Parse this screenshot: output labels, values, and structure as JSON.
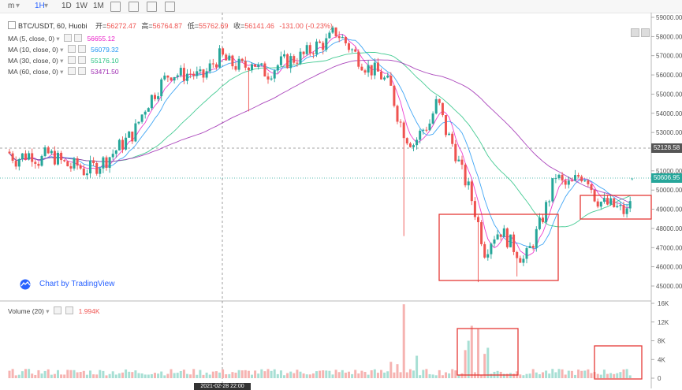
{
  "toolbar": {
    "items": [
      "m",
      "1H",
      "1D",
      "1W",
      "1M"
    ],
    "active": "1H"
  },
  "header": {
    "symbol": "BTC/USDT, 60, Huobi",
    "open_label": "开=",
    "open": "56272.47",
    "high_label": "高=",
    "high": "56764.87",
    "low_label": "低=",
    "low": "55762.69",
    "close_label": "收=",
    "close": "56141.46",
    "change": "-131.00 (-0.23%)"
  },
  "indicators": [
    {
      "label": "MA (5, close, 0)",
      "value": "56655.12",
      "color": "#e91ec8"
    },
    {
      "label": "MA (10, close, 0)",
      "value": "56079.32",
      "color": "#2196f3"
    },
    {
      "label": "MA (30, close, 0)",
      "value": "55176.10",
      "color": "#26c281"
    },
    {
      "label": "MA (60, close, 0)",
      "value": "53471.50",
      "color": "#9c27b0"
    }
  ],
  "volume_indicator": {
    "label": "Volume (20)",
    "value": "1.994K"
  },
  "branding": "Chart by TradingView",
  "crosshair_time": "2021-02-28  22:00",
  "price_tags": {
    "crosshair": "52128.58",
    "last": "50606.95"
  },
  "colors": {
    "up": "#26a69a",
    "down": "#ef5350",
    "up_vol": "#a7dfd4",
    "down_vol": "#f6b3b1",
    "box": "#e53935"
  },
  "chart_data": {
    "type": "candlestick",
    "price_axis": {
      "min": 45000,
      "max": 59000,
      "ticks": [
        "59000.00",
        "58000.00",
        "57000.00",
        "56000.00",
        "55000.00",
        "54000.00",
        "53000.00",
        "51000.00",
        "50000.00",
        "49000.00",
        "48000.00",
        "47000.00",
        "46000.00",
        "45000.00"
      ]
    },
    "volume_axis": {
      "min": 0,
      "max": 16000,
      "ticks": [
        "16K",
        "12K",
        "8K",
        "4K",
        "0"
      ]
    },
    "keypoints": [
      [
        0,
        52000
      ],
      [
        10,
        51600
      ],
      [
        20,
        51800
      ],
      [
        30,
        51900
      ],
      [
        40,
        51500
      ],
      [
        50,
        51900
      ],
      [
        60,
        51700
      ],
      [
        70,
        51400
      ],
      [
        80,
        51200
      ],
      [
        90,
        51300
      ],
      [
        95,
        51000
      ],
      [
        110,
        51200
      ],
      [
        125,
        51600
      ],
      [
        140,
        52200
      ],
      [
        160,
        53000
      ],
      [
        175,
        54400
      ],
      [
        190,
        55300
      ],
      [
        205,
        56100
      ],
      [
        220,
        56000
      ],
      [
        232,
        56100
      ],
      [
        246,
        55800
      ],
      [
        262,
        56700
      ],
      [
        270,
        57000
      ],
      [
        280,
        56600
      ],
      [
        290,
        56500
      ],
      [
        300,
        56400
      ],
      [
        310,
        56800
      ],
      [
        318,
        56300
      ],
      [
        330,
        56100
      ],
      [
        345,
        56600
      ],
      [
        360,
        56800
      ],
      [
        375,
        57000
      ],
      [
        390,
        57500
      ],
      [
        405,
        57700
      ],
      [
        415,
        58300
      ],
      [
        428,
        57700
      ],
      [
        440,
        57100
      ],
      [
        455,
        56400
      ],
      [
        470,
        56100
      ],
      [
        485,
        55400
      ],
      [
        495,
        53800
      ],
      [
        505,
        52800
      ],
      [
        515,
        52400
      ],
      [
        525,
        53100
      ],
      [
        535,
        53500
      ],
      [
        545,
        54700
      ],
      [
        555,
        53100
      ],
      [
        565,
        52300
      ],
      [
        575,
        51000
      ],
      [
        585,
        50000
      ],
      [
        595,
        48500
      ],
      [
        605,
        46800
      ],
      [
        615,
        47600
      ],
      [
        625,
        47900
      ],
      [
        640,
        47100
      ],
      [
        655,
        46300
      ],
      [
        665,
        47200
      ],
      [
        675,
        48200
      ],
      [
        685,
        49400
      ],
      [
        695,
        50800
      ],
      [
        705,
        50200
      ],
      [
        715,
        50300
      ],
      [
        725,
        50800
      ],
      [
        735,
        50700
      ],
      [
        745,
        49600
      ],
      [
        755,
        49300
      ],
      [
        765,
        49200
      ],
      [
        775,
        49000
      ],
      [
        785,
        48800
      ],
      [
        792,
        50000
      ],
      [
        800,
        50700
      ]
    ],
    "spikes": [
      {
        "x": 315,
        "low": 54100
      },
      {
        "x": 512,
        "low": 47600
      },
      {
        "x": 608,
        "low": 45200
      },
      {
        "x": 657,
        "low": 45500
      }
    ],
    "volume_spikes": [
      {
        "x": 512,
        "vol": 15800
      },
      {
        "x": 600,
        "vol": 11200
      },
      {
        "x": 605,
        "vol": 10500
      },
      {
        "x": 595,
        "vol": 8000
      },
      {
        "x": 620,
        "vol": 6500
      },
      {
        "x": 590,
        "vol": 6000
      },
      {
        "x": 615,
        "vol": 5200
      },
      {
        "x": 530,
        "vol": 4800
      },
      {
        "x": 495,
        "vol": 3500
      },
      {
        "x": 505,
        "vol": 3000
      }
    ],
    "moving_averages": [
      "MA 5",
      "MA 10",
      "MA 30",
      "MA 60"
    ]
  }
}
